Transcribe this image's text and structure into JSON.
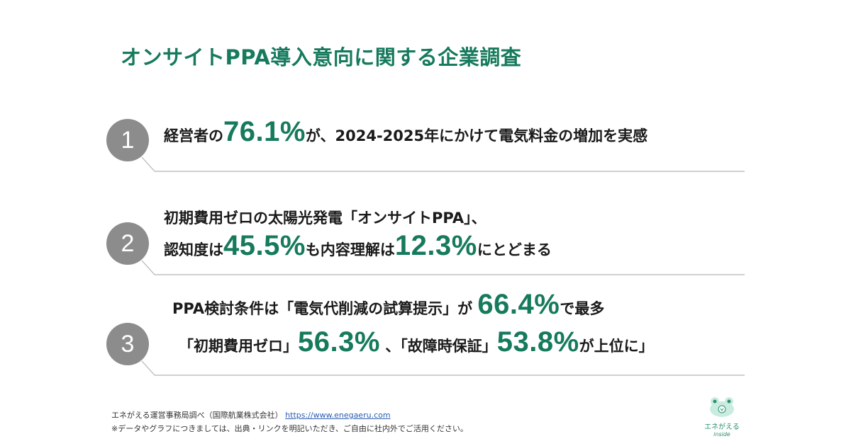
{
  "title": "オンサイトPPA導入意向に関する企業調査",
  "items": [
    {
      "number": "1",
      "line1": {
        "pre": "経営者の",
        "big": "76.1%",
        "post": "が、2024-2025年にかけて電気料金の増加を実感"
      }
    },
    {
      "number": "2",
      "line1": {
        "text": "初期費用ゼロの太陽光発電「オンサイトPPA」、"
      },
      "line2": {
        "pre": "認知度は",
        "big1": "45.5%",
        "mid": "も内容理解は",
        "big2": "12.3%",
        "post": "にとどまる"
      }
    },
    {
      "number": "3",
      "line1": {
        "pre": "PPA検討条件は「電気代削減の試算提示」が",
        "big": "66.4%",
        "post": "で最多"
      },
      "line2": {
        "pre": "「初期費用ゼロ」",
        "big1": "56.3%",
        "mid": "、「故障時保証」",
        "big2": "53.8%",
        "post": "が上位に」"
      }
    }
  ],
  "source": {
    "text": "エネがえる運営事務局調べ（国際航業株式会社）",
    "url": "https://www.enegaeru.com",
    "note": "※データやグラフにつきましては、出典・リンクを明記いただき、ご自由に社内外でご活用ください。"
  },
  "logo": {
    "name": "エネがえる",
    "sub": "inside"
  },
  "colors": {
    "accent": "#167a5c",
    "circle": "#8c8c8c",
    "divider": "#b5b5b5"
  }
}
